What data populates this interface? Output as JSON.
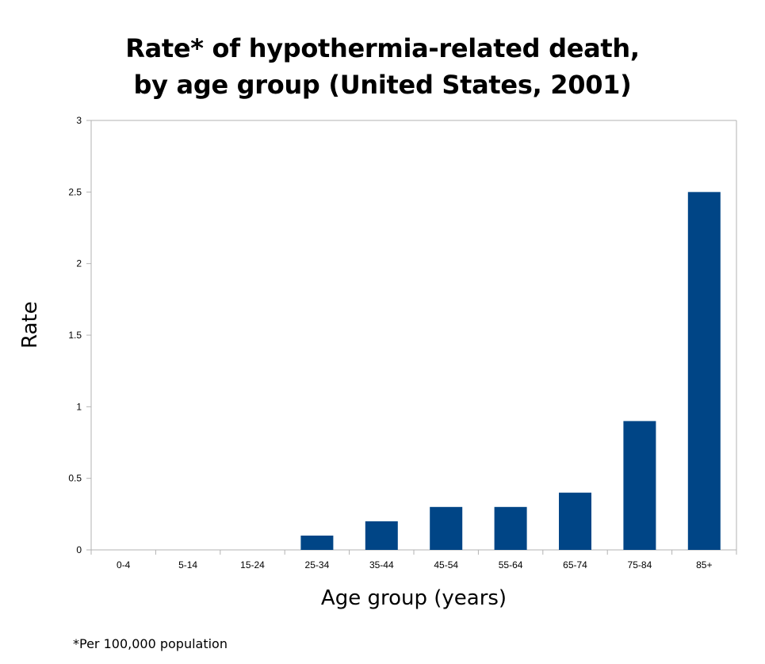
{
  "chart_data": {
    "type": "bar",
    "title_lines": [
      "Rate* of hypothermia-related death,",
      "by age group (United States, 2001)"
    ],
    "xlabel": "Age group (years)",
    "ylabel": "Rate",
    "footnote": "*Per 100,000 population",
    "categories": [
      "0-4",
      "5-14",
      "15-24",
      "25-34",
      "35-44",
      "45-54",
      "55-64",
      "65-74",
      "75-84",
      "85+"
    ],
    "values": [
      0,
      0,
      0,
      0.1,
      0.2,
      0.3,
      0.3,
      0.4,
      0.9,
      2.5
    ],
    "ylim": [
      0,
      3
    ],
    "yticks": [
      0,
      0.5,
      1,
      1.5,
      2,
      2.5,
      3
    ],
    "ytick_labels": [
      "0",
      "0.5",
      "1",
      "1.5",
      "2",
      "2.5",
      "3"
    ],
    "grid": false,
    "legend": "none",
    "bar_color": "#004586",
    "axis_color": "#b3b3b3"
  }
}
